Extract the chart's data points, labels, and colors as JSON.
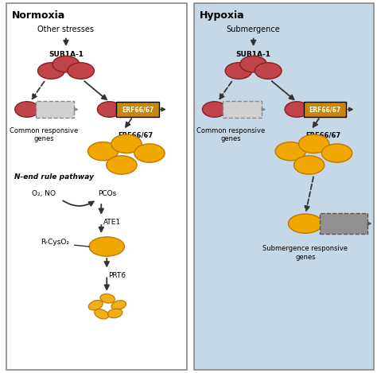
{
  "fig_width": 4.74,
  "fig_height": 4.69,
  "dpi": 100,
  "bg_white": "#ffffff",
  "bg_blue": "#c5d8e8",
  "border_color": "#888888",
  "normoxia_title": "Normoxia",
  "hypoxia_title": "Hypoxia",
  "sub1a_label": "SUB1A-1",
  "erf_label": "ERF66/67",
  "common_genes_label": "Common responsive\ngenes",
  "nend_label": "N-end rule pathway",
  "o2no_label": "O₂, NO",
  "pcos_label": "PCOs",
  "ate1_label": "ATE1",
  "rcyso_label": "R-CysO₂",
  "prt6_label": "PRT6",
  "otherstresses_label": "Other stresses",
  "submergence_label": "Submergence",
  "submergence_genes_label": "Submergence responsive\ngenes",
  "red_ellipse_color": "#c0444a",
  "red_ellipse_edge": "#8b2020",
  "gold_ellipse_color": "#f0a800",
  "gold_ellipse_edge": "#c07800",
  "erf_box_color": "#c8860a",
  "gene_box_color": "#d0d0d0",
  "gene_box_edge": "#888888",
  "sub_gene_box_color": "#909090",
  "sub_gene_box_edge": "#555555",
  "arrow_color": "#333333"
}
